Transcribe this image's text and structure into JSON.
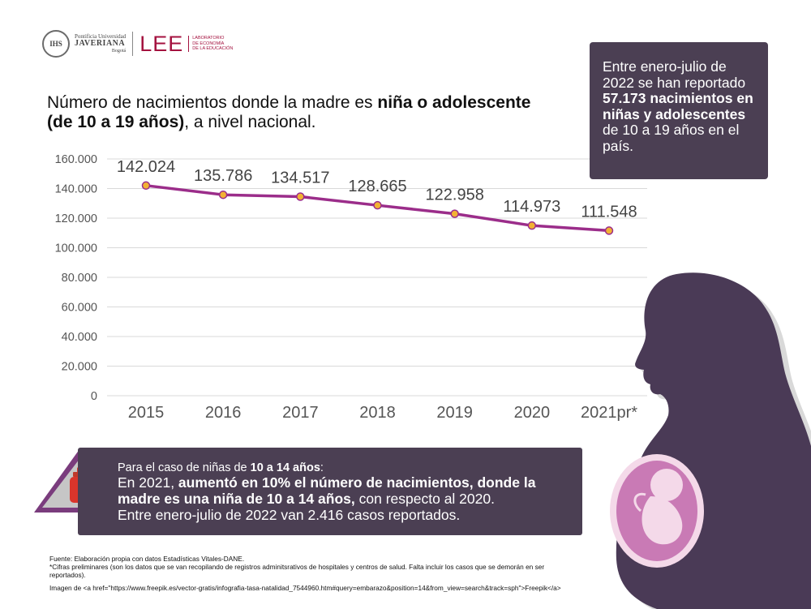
{
  "header": {
    "seal_text": "IHS",
    "university_line1": "Pontificia Universidad",
    "university_line2": "JAVERIANA",
    "university_line3": "Bogotá",
    "lee_logo": "LEE",
    "lee_sub1": "Laboratorio",
    "lee_sub2": "de Economía",
    "lee_sub3": "de la Educación"
  },
  "title": {
    "part1": "Número de nacimientos donde la madre es ",
    "bold1": "niña o adolescente (de 10 a 19 años)",
    "part2": ", a nivel nacional."
  },
  "info_box": {
    "text1": "Entre enero-julio de 2022 se han reportado ",
    "bold": "57.173 nacimientos en niñas y adolescentes",
    "text2": " de 10 a 19 años en el país."
  },
  "chart_data": {
    "type": "line",
    "title": "Número de nacimientos donde la madre es niña o adolescente (de 10 a 19 años), a nivel nacional.",
    "categories": [
      "2015",
      "2016",
      "2017",
      "2018",
      "2019",
      "2020",
      "2021pr*"
    ],
    "values": [
      142024,
      135786,
      134517,
      128665,
      122958,
      114973,
      111548
    ],
    "data_labels": [
      "142.024",
      "135.786",
      "134.517",
      "128.665",
      "122.958",
      "114.973",
      "111.548"
    ],
    "y_ticks": [
      0,
      20000,
      40000,
      60000,
      80000,
      100000,
      120000,
      140000,
      160000
    ],
    "y_tick_labels": [
      "0",
      "20.000",
      "40.000",
      "60.000",
      "80.000",
      "100.000",
      "120.000",
      "140.000",
      "160.000"
    ],
    "ylim": [
      0,
      160000
    ],
    "grid": true,
    "xlabel": "",
    "ylabel": "",
    "line_color": "#9b2d8a",
    "marker_color": "#f2b233"
  },
  "bottom_box": {
    "intro": "Para el caso de niñas de ",
    "intro_bold": "10 a 14 años",
    "intro_end": ":",
    "line1": "En 2021, ",
    "line1_bold": "aumentó en 10% el número de nacimientos, donde la madre es una niña de 10 a 14 años,",
    "line1_end": " con respecto al 2020.",
    "line2": "Entre enero-julio de 2022 van 2.416 casos reportados."
  },
  "footer": {
    "source": "Fuente: Elaboración propia con datos Estadísticas Vitales-DANE.",
    "note": "*Cifras preliminares (son los datos que se van recopilando de registros adminitsrativos de hospitales y centros de salud. Falta incluir los casos que se demorán en ser reportados).",
    "credit": "Imagen de <a href=\"https://www.freepik.es/vector-gratis/infografia-tasa-natalidad_7544960.htm#query=embarazo&position=14&from_view=search&track=sph\">Freepik</a>"
  },
  "colors": {
    "box_bg": "#4b3f53",
    "brand": "#a4123f",
    "silhouette": "#4a3a56",
    "womb": "#c97ab5"
  }
}
